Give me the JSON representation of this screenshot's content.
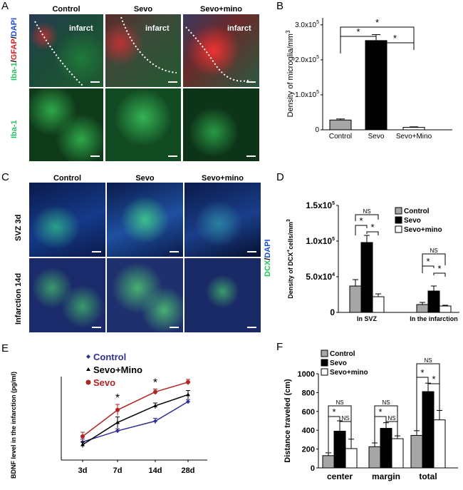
{
  "panels": {
    "A": {
      "label": "A",
      "headers": [
        "Control",
        "Sevo",
        "Sevo+mino"
      ],
      "infarct_label": "infarct",
      "row1_label_parts": [
        {
          "text": "Iba-1",
          "color": "#22c55e"
        },
        {
          "text": "/",
          "color": "#000000"
        },
        {
          "text": "GFAP",
          "color": "#e11d1d"
        },
        {
          "text": "/",
          "color": "#000000"
        },
        {
          "text": "DAPI",
          "color": "#1d4ed8"
        }
      ],
      "row2_label": "Iba-1"
    },
    "C": {
      "label": "C",
      "headers": [
        "Control",
        "Sevo",
        "Sevo+mino"
      ],
      "row1_label": "SVZ 3d",
      "row2_label": "Infarction 14d",
      "side_label_parts": [
        {
          "text": "DCX",
          "color": "#22c55e"
        },
        {
          "text": "/",
          "color": "#000000"
        },
        {
          "text": "DAPI",
          "color": "#1d4ed8"
        }
      ]
    }
  },
  "colors": {
    "control_gray": "#a6a6a6",
    "sevo_black": "#000000",
    "mino_white": "#ffffff",
    "control_line": "#2e3192",
    "mino_line": "#000000",
    "sevo_line": "#b22222"
  },
  "chart_data": [
    {
      "panel": "B",
      "type": "bar",
      "categories": [
        "Control",
        "Sevo",
        "Sevo+Mino"
      ],
      "values": [
        28000,
        255000,
        7000
      ],
      "errors": [
        3000,
        17000,
        1500
      ],
      "bar_colors": [
        "#a6a6a6",
        "#000000",
        "#ffffff"
      ],
      "ylabel": "Density of microglia/mm3",
      "ylim": [
        0,
        320000
      ],
      "yticks": [
        {
          "value": 0,
          "label": "0"
        },
        {
          "value": 100000,
          "label": "1.0x10"
        },
        {
          "value": 200000,
          "label": "2.0x10"
        },
        {
          "value": 300000,
          "label": "3.0x10"
        }
      ],
      "tick_exponent": "5",
      "significance": [
        {
          "from": 0,
          "to": 1,
          "label": "*"
        },
        {
          "from": 1,
          "to": 2,
          "label": "*"
        },
        {
          "from": 0,
          "to": 2,
          "label": "*"
        }
      ]
    },
    {
      "panel": "D",
      "type": "bar",
      "categories": [
        "In SVZ",
        "In the infarction"
      ],
      "series": [
        {
          "name": "Control",
          "values": [
            37000,
            11000
          ],
          "errors": [
            9000,
            3000
          ]
        },
        {
          "name": "Sevo",
          "values": [
            98000,
            30000
          ],
          "errors": [
            10000,
            7000
          ]
        },
        {
          "name": "Sevo+mino",
          "values": [
            22000,
            9000
          ],
          "errors": [
            4000,
            1000
          ]
        }
      ],
      "ylabel": "Density of DCX+cells/mm3",
      "ylim": [
        0,
        150000
      ],
      "yticks": [
        {
          "value": 0,
          "label": "0"
        },
        {
          "value": 50000,
          "label": "5.0x10"
        },
        {
          "value": 100000,
          "label": "1.0x10"
        },
        {
          "value": 150000,
          "label": "1.5x10"
        }
      ],
      "tick_exponents": [
        "",
        "4",
        "5",
        "5"
      ],
      "legend_position": "top-right",
      "significance_labels": [
        "NS",
        "*",
        "*",
        "NS",
        "*",
        "*"
      ]
    },
    {
      "panel": "E",
      "type": "line",
      "x": [
        "3d",
        "7d",
        "14d",
        "28d"
      ],
      "series": [
        {
          "name": "Control",
          "values": [
            13,
            21,
            28,
            42
          ],
          "errors": [
            2,
            1.5,
            2,
            1.5
          ]
        },
        {
          "name": "Sevo+Mino",
          "values": [
            11,
            27,
            39,
            47
          ],
          "errors": [
            2,
            4,
            2,
            3
          ]
        },
        {
          "name": "Sevo",
          "values": [
            17,
            36,
            49,
            56
          ],
          "errors": [
            3,
            4,
            2,
            2
          ]
        }
      ],
      "ylabel": "BDNF level in the infarction (pg/ml)",
      "ylim": [
        0,
        60
      ],
      "legend_position": "top-left",
      "annotations": [
        {
          "x": "7d",
          "label": "*"
        },
        {
          "x": "14d",
          "label": "*"
        }
      ]
    },
    {
      "panel": "F",
      "type": "bar",
      "categories": [
        "center",
        "margin",
        "total"
      ],
      "series": [
        {
          "name": "Control",
          "values": [
            130,
            225,
            345
          ],
          "errors": [
            30,
            40,
            50
          ]
        },
        {
          "name": "Sevo",
          "values": [
            390,
            420,
            810
          ],
          "errors": [
            110,
            60,
            90
          ]
        },
        {
          "name": "Sevo+mino",
          "values": [
            205,
            310,
            510
          ],
          "errors": [
            100,
            30,
            100
          ]
        }
      ],
      "ylabel": "Distance traveled (cm)",
      "ylim": [
        0,
        1000
      ],
      "yticks": [
        0,
        200,
        400,
        600,
        800,
        1000
      ],
      "legend_position": "top-left",
      "significance_labels": [
        "NS",
        "*",
        "NS",
        "NS",
        "*",
        "NS",
        "NS",
        "*",
        "*"
      ]
    }
  ]
}
